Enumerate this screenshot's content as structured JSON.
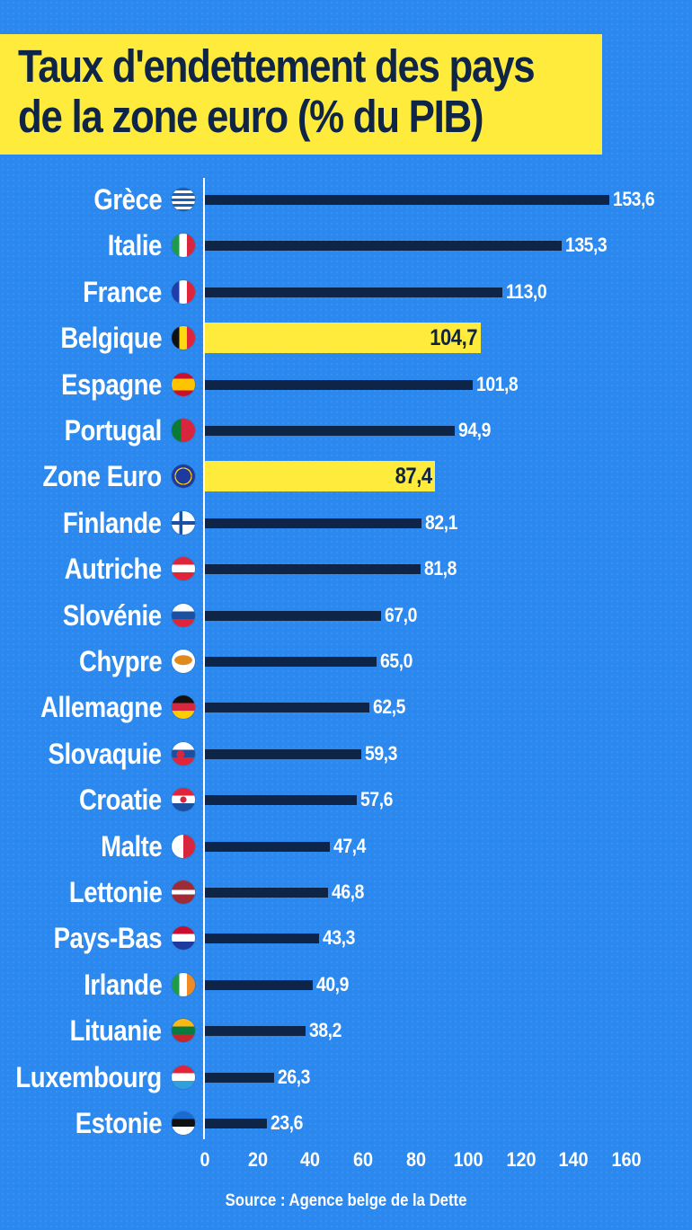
{
  "title": {
    "line1": "Taux d'endettement des pays",
    "line2": "de la zone euro (% du PIB)"
  },
  "source": "Source : Agence belge de la Dette",
  "colors": {
    "background": "#2b88ee",
    "bar": "#0f2548",
    "highlight": "#ffeb3b",
    "text": "#ffffff",
    "title_text": "#0f2548"
  },
  "chart_data": {
    "type": "bar",
    "orientation": "horizontal",
    "title": "Taux d'endettement des pays de la zone euro (% du PIB)",
    "xlabel": "",
    "ylabel": "",
    "xlim": [
      0,
      160
    ],
    "xticks": [
      0,
      20,
      40,
      60,
      80,
      100,
      120,
      140,
      160
    ],
    "grid": false,
    "legend": null,
    "categories": [
      "Grèce",
      "Italie",
      "France",
      "Belgique",
      "Espagne",
      "Portugal",
      "Zone Euro",
      "Finlande",
      "Autriche",
      "Slovénie",
      "Chypre",
      "Allemagne",
      "Slovaquie",
      "Croatie",
      "Malte",
      "Lettonie",
      "Pays-Bas",
      "Irlande",
      "Lituanie",
      "Luxembourg",
      "Estonie"
    ],
    "values": [
      153.6,
      135.3,
      113.0,
      104.7,
      101.8,
      94.9,
      87.4,
      82.1,
      81.8,
      67.0,
      65.0,
      62.5,
      59.3,
      57.6,
      47.4,
      46.8,
      43.3,
      40.9,
      38.2,
      26.3,
      23.6
    ],
    "value_labels": [
      "153,6",
      "135,3",
      "113,0",
      "104,7",
      "101,8",
      "94,9",
      "87,4",
      "82,1",
      "81,8",
      "67,0",
      "65,0",
      "62,5",
      "59,3",
      "57,6",
      "47,4",
      "46,8",
      "43,3",
      "40,9",
      "38,2",
      "26,3",
      "23,6"
    ],
    "highlighted": [
      "Belgique",
      "Zone Euro"
    ],
    "source": "Source : Agence belge de la Dette"
  },
  "rows": [
    {
      "label": "Grèce",
      "value": 153.6,
      "text": "153,6",
      "flag": "greece-flag",
      "hl": false
    },
    {
      "label": "Italie",
      "value": 135.3,
      "text": "135,3",
      "flag": "italy-flag",
      "hl": false
    },
    {
      "label": "France",
      "value": 113.0,
      "text": "113,0",
      "flag": "france-flag",
      "hl": false
    },
    {
      "label": "Belgique",
      "value": 104.7,
      "text": "104,7",
      "flag": "belgium-flag",
      "hl": true
    },
    {
      "label": "Espagne",
      "value": 101.8,
      "text": "101,8",
      "flag": "spain-flag",
      "hl": false
    },
    {
      "label": "Portugal",
      "value": 94.9,
      "text": "94,9",
      "flag": "portugal-flag",
      "hl": false
    },
    {
      "label": "Zone Euro",
      "value": 87.4,
      "text": "87,4",
      "flag": "eu-flag",
      "hl": true
    },
    {
      "label": "Finlande",
      "value": 82.1,
      "text": "82,1",
      "flag": "finland-flag",
      "hl": false
    },
    {
      "label": "Autriche",
      "value": 81.8,
      "text": "81,8",
      "flag": "austria-flag",
      "hl": false
    },
    {
      "label": "Slovénie",
      "value": 67.0,
      "text": "67,0",
      "flag": "slovenia-flag",
      "hl": false
    },
    {
      "label": "Chypre",
      "value": 65.0,
      "text": "65,0",
      "flag": "cyprus-flag",
      "hl": false
    },
    {
      "label": "Allemagne",
      "value": 62.5,
      "text": "62,5",
      "flag": "germany-flag",
      "hl": false
    },
    {
      "label": "Slovaquie",
      "value": 59.3,
      "text": "59,3",
      "flag": "slovakia-flag",
      "hl": false
    },
    {
      "label": "Croatie",
      "value": 57.6,
      "text": "57,6",
      "flag": "croatia-flag",
      "hl": false
    },
    {
      "label": "Malte",
      "value": 47.4,
      "text": "47,4",
      "flag": "malta-flag",
      "hl": false
    },
    {
      "label": "Lettonie",
      "value": 46.8,
      "text": "46,8",
      "flag": "latvia-flag",
      "hl": false
    },
    {
      "label": "Pays-Bas",
      "value": 43.3,
      "text": "43,3",
      "flag": "netherlands-flag",
      "hl": false
    },
    {
      "label": "Irlande",
      "value": 40.9,
      "text": "40,9",
      "flag": "ireland-flag",
      "hl": false
    },
    {
      "label": "Lituanie",
      "value": 38.2,
      "text": "38,2",
      "flag": "lithuania-flag",
      "hl": false
    },
    {
      "label": "Luxembourg",
      "value": 26.3,
      "text": "26,3",
      "flag": "luxembourg-flag",
      "hl": false
    },
    {
      "label": "Estonie",
      "value": 23.6,
      "text": "23,6",
      "flag": "estonia-flag",
      "hl": false
    }
  ],
  "axis": {
    "ticks": [
      "0",
      "20",
      "40",
      "60",
      "80",
      "100",
      "120",
      "140",
      "160"
    ]
  }
}
